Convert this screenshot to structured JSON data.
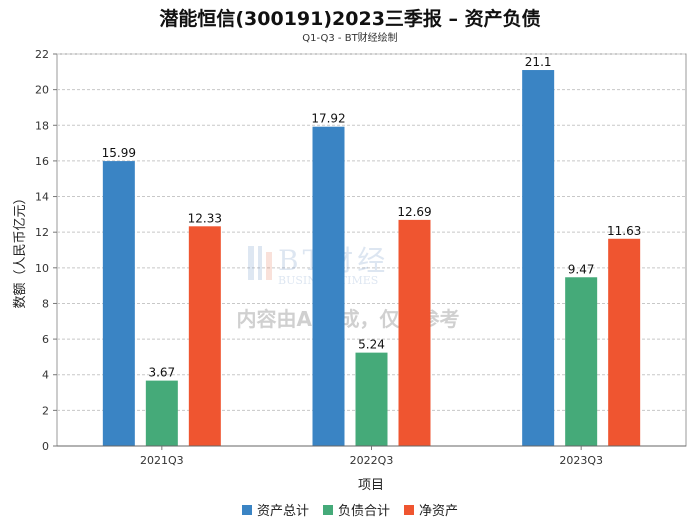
{
  "chart_data": {
    "type": "bar",
    "title": "潜能恒信(300191)2023三季报 – 资产负债",
    "subtitle": "Q1-Q3 - BT财经绘制",
    "xlabel": "项目",
    "ylabel": "数额（人民币亿元）",
    "categories": [
      "2021Q3",
      "2022Q3",
      "2023Q3"
    ],
    "ylim": [
      0,
      22
    ],
    "yticks": [
      0,
      2,
      4,
      6,
      8,
      10,
      12,
      14,
      16,
      18,
      20,
      22
    ],
    "grid": true,
    "legend_position": "bottom",
    "series": [
      {
        "name": "资产总计",
        "color": "#3a84c4",
        "values": [
          15.99,
          17.92,
          21.1
        ],
        "labels": [
          "15.99",
          "17.92",
          "21.1"
        ]
      },
      {
        "name": "负债合计",
        "color": "#45aa79",
        "values": [
          3.67,
          5.24,
          9.47
        ],
        "labels": [
          "3.67",
          "5.24",
          "9.47"
        ]
      },
      {
        "name": "净资产",
        "color": "#ef5530",
        "values": [
          12.33,
          12.69,
          11.63
        ],
        "labels": [
          "12.33",
          "12.69",
          "11.63"
        ]
      }
    ]
  },
  "watermark": {
    "logo_text": "BT财经",
    "logo_subtext": "BUSINESSTIMES",
    "notice": "内容由AI生成，仅供参考"
  }
}
